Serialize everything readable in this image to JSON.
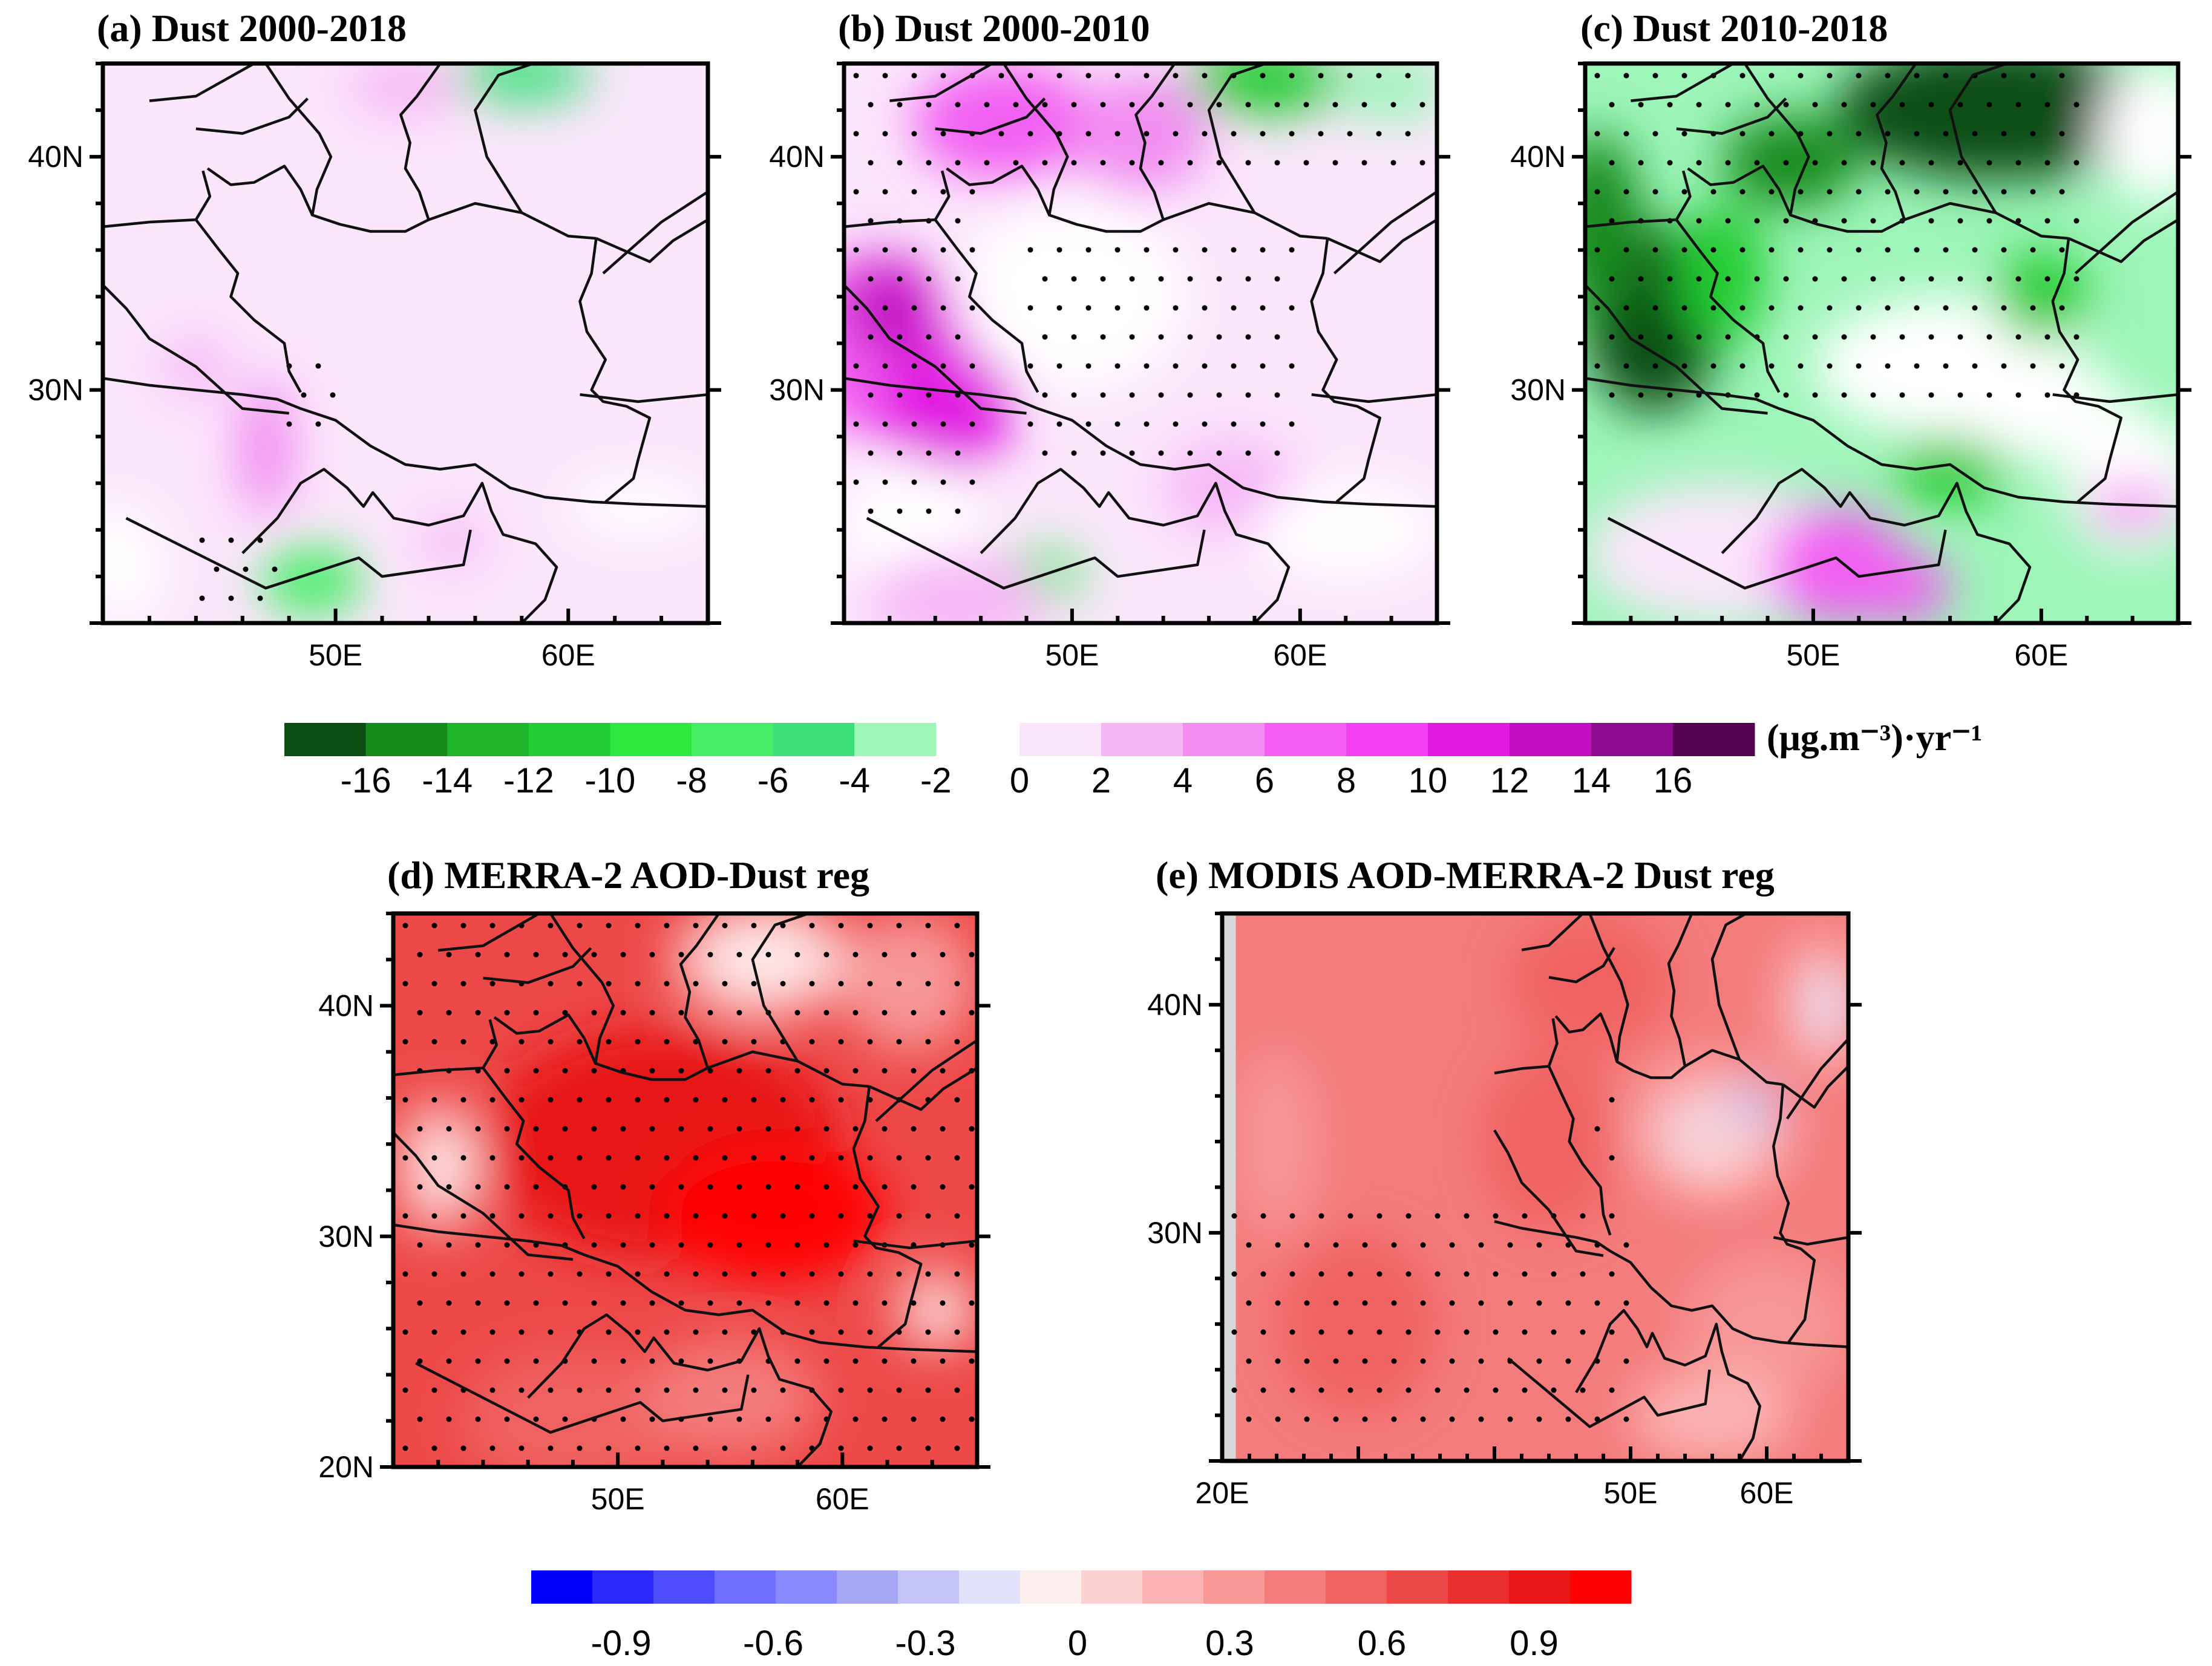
{
  "figure": {
    "panel_a_title": "(a) Dust 2000-2018",
    "panel_b_title": "(b) Dust 2000-2010",
    "panel_c_title": "(c) Dust 2010-2018",
    "panel_d_title": "(d) MERRA-2 AOD-Dust reg",
    "panel_e_title": "(e) MODIS AOD-MERRA-2 Dust reg",
    "top_colorbar_unit": "(μg.m⁻³)·yr⁻¹"
  },
  "chart_data": [
    {
      "type": "heatmap",
      "id": "a",
      "title": "(a) Dust 2000-2018",
      "field_pattern": "weak",
      "xlabel": "",
      "ylabel": "",
      "xticks": [
        "50E",
        "60E"
      ],
      "yticks": [
        "40N",
        "30N"
      ],
      "colorbar": "trend",
      "stippling": "sparse"
    },
    {
      "type": "heatmap",
      "id": "b",
      "title": "(b) Dust 2000-2010",
      "field_pattern": "positive",
      "xticks": [
        "50E",
        "60E"
      ],
      "yticks": [
        "40N",
        "30N"
      ],
      "colorbar": "trend",
      "stippling": "widespread"
    },
    {
      "type": "heatmap",
      "id": "c",
      "title": "(c) Dust 2010-2018",
      "field_pattern": "negative",
      "xticks": [
        "50E",
        "60E"
      ],
      "yticks": [
        "40N",
        "30N"
      ],
      "colorbar": "trend",
      "stippling": "widespread"
    },
    {
      "type": "heatmap",
      "id": "d",
      "title": "(d) MERRA-2 AOD-Dust reg",
      "field_pattern": "strong-red",
      "xticks": [
        "50E",
        "60E"
      ],
      "yticks": [
        "40N",
        "30N",
        "20N"
      ],
      "colorbar": "regression",
      "stippling": "everywhere"
    },
    {
      "type": "heatmap",
      "id": "e",
      "title": "(e) MODIS AOD-MERRA-2 Dust reg",
      "field_pattern": "moderate-red",
      "xticks": [
        "20E",
        "50E",
        "60E"
      ],
      "yticks": [
        "40N",
        "30N"
      ],
      "colorbar": "regression",
      "stippling": "southwest"
    }
  ],
  "colorbars": {
    "trend": {
      "neg_colors": [
        "#0b4d12",
        "#148a1a",
        "#1fb52a",
        "#22cc33",
        "#2ee83d",
        "#44ee66",
        "#3ce07a",
        "#9df5b8"
      ],
      "pos_colors": [
        "#fbe6fb",
        "#f6b6f6",
        "#f18cf1",
        "#f25ef2",
        "#f53ff5",
        "#e21ae2",
        "#c20ec2",
        "#8e0a8e",
        "#520452"
      ],
      "neg_labels": [
        "-16",
        "-14",
        "-12",
        "-10",
        "-8",
        "-6",
        "-4",
        "-2"
      ],
      "pos_labels": [
        "0",
        "2",
        "4",
        "6",
        "8",
        "10",
        "12",
        "14",
        "16"
      ]
    },
    "regression": {
      "colors": [
        "#0000ff",
        "#2a2aff",
        "#4d4dff",
        "#6e6eff",
        "#8a8aff",
        "#a6a6f7",
        "#c4c4f7",
        "#e2e2fb",
        "#ffeeee",
        "#fdd0d0",
        "#fbb3b3",
        "#f79797",
        "#f47c7c",
        "#f06262",
        "#ed4848",
        "#ea2f2f",
        "#e81818",
        "#ff0000"
      ],
      "labels": [
        "-0.9",
        "-0.6",
        "-0.3",
        "0",
        "0.3",
        "0.6",
        "0.9"
      ]
    }
  }
}
